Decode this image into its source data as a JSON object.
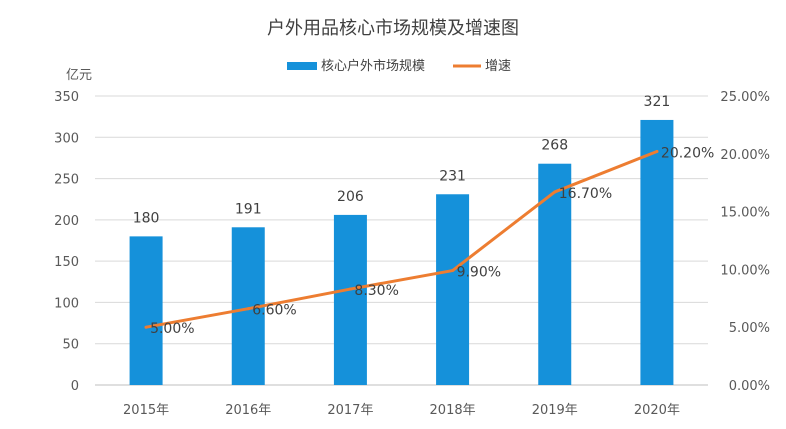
{
  "chart_data": {
    "type": "bar",
    "title": "户外用品核心市场规模及增速图",
    "ylabel": "亿元",
    "categories": [
      "2015年",
      "2016年",
      "2017年",
      "2018年",
      "2019年",
      "2020年"
    ],
    "series": [
      {
        "name": "核心户外市场规模",
        "type": "bar",
        "axis": "left",
        "color": "#1591da",
        "values": [
          180,
          191,
          206,
          231,
          268,
          321
        ],
        "labels": [
          "180",
          "191",
          "206",
          "231",
          "268",
          "321"
        ]
      },
      {
        "name": "增速",
        "type": "line",
        "axis": "right",
        "color": "#ed7d31",
        "values": [
          5.0,
          6.6,
          8.3,
          9.9,
          16.7,
          20.2
        ],
        "labels": [
          "5.00%",
          "6.60%",
          "8.30%",
          "9.90%",
          "16.70%",
          "20.20%"
        ]
      }
    ],
    "ylim": [
      0,
      350
    ],
    "y_ticks": [
      "0",
      "50",
      "100",
      "150",
      "200",
      "250",
      "300",
      "350"
    ],
    "y2lim": [
      0,
      25
    ],
    "y2_ticks": [
      "0.00%",
      "5.00%",
      "10.00%",
      "15.00%",
      "20.00%",
      "25.00%"
    ],
    "grid": true,
    "legend_position": "top-center"
  }
}
